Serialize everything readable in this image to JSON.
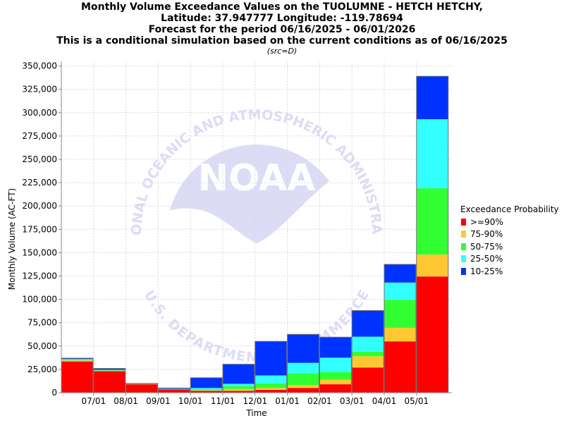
{
  "chart_data": {
    "type": "bar",
    "stacked": true,
    "title_lines": [
      "Monthly Volume Exceedance Values on the TUOLUMNE - HETCH HETCHY,",
      "Latitude: 37.947777 Longitude: -119.78694",
      "Forecast for the period 06/16/2025 - 06/01/2026",
      "This is a conditional simulation based on the current conditions as of 06/16/2025"
    ],
    "subtitle": "(src=D)",
    "xlabel": "Time",
    "ylabel": "Monthly Volume (AC-FT)",
    "ylim": [
      0,
      355000
    ],
    "grid": true,
    "legend_position": "right",
    "legend_title": "Exceedance Probability",
    "watermark_logo": "NOAA",
    "watermark_text": "NATIONAL OCEANIC AND ATMOSPHERIC ADMINISTRATION",
    "watermark_dept": "U.S. DEPARTMENT OF COMMERCE",
    "yticks": [
      0,
      25000,
      50000,
      75000,
      100000,
      125000,
      150000,
      175000,
      200000,
      225000,
      250000,
      275000,
      300000,
      325000,
      350000
    ],
    "ytick_labels": [
      "0",
      "25,000",
      "50,000",
      "75,000",
      "100,000",
      "125,000",
      "150,000",
      "175,000",
      "200,000",
      "225,000",
      "250,000",
      "275,000",
      "300,000",
      "325,000",
      "350,000"
    ],
    "xtick_labels": [
      "07/01",
      "08/01",
      "09/01",
      "10/01",
      "11/01",
      "12/01",
      "01/01",
      "02/01",
      "03/01",
      "04/01",
      "05/01"
    ],
    "bars": [
      {
        "tops": [
          33500,
          34500,
          35000,
          36000,
          37000
        ]
      },
      {
        "tops": [
          23000,
          23500,
          24000,
          24500,
          26000
        ]
      },
      {
        "tops": [
          9000,
          9200,
          9400,
          9600,
          10000
        ]
      },
      {
        "tops": [
          3500,
          3700,
          3900,
          4100,
          5000
        ]
      },
      {
        "tops": [
          2000,
          2600,
          3300,
          5000,
          16000
        ]
      },
      {
        "tops": [
          2000,
          4000,
          7000,
          9500,
          30500
        ]
      },
      {
        "tops": [
          3000,
          5000,
          10000,
          18500,
          55000
        ]
      },
      {
        "tops": [
          5000,
          8000,
          21000,
          32000,
          62500
        ]
      },
      {
        "tops": [
          9000,
          14000,
          22000,
          37500,
          59500
        ]
      },
      {
        "tops": [
          27000,
          39000,
          44000,
          60000,
          88000
        ]
      },
      {
        "tops": [
          55000,
          69500,
          99500,
          118000,
          137500
        ]
      },
      {
        "tops": [
          124500,
          148000,
          219000,
          293000,
          339000
        ]
      }
    ],
    "series": [
      {
        "name": ">=90%",
        "color": "#ff0000"
      },
      {
        "name": "75-90%",
        "color": "#ffc832"
      },
      {
        "name": "50-75%",
        "color": "#32ff32"
      },
      {
        "name": "25-50%",
        "color": "#32ffff"
      },
      {
        "name": "10-25%",
        "color": "#0032ff"
      }
    ]
  }
}
